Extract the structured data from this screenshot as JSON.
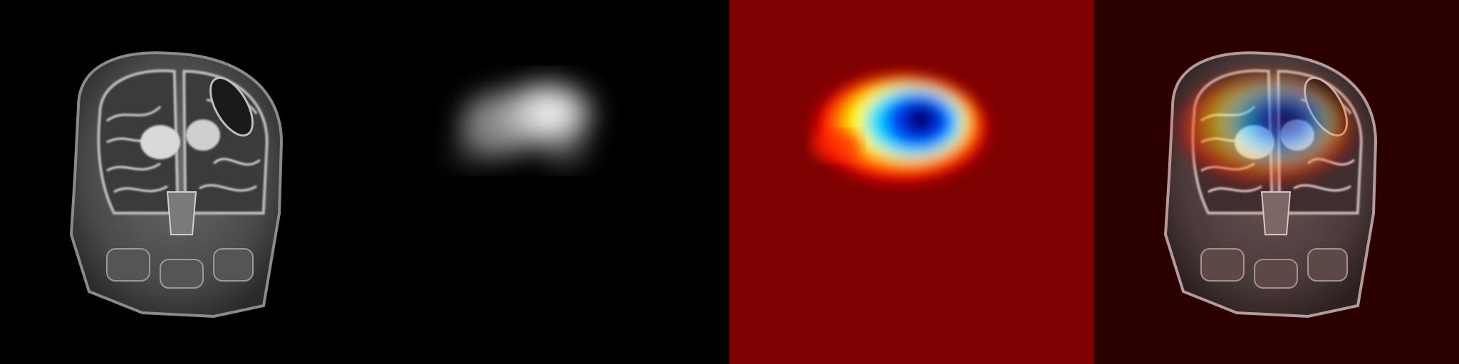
{
  "figure": {
    "panel_count": 4,
    "panels": [
      {
        "id": "mri-t2-coronal",
        "kind": "grayscale-scan"
      },
      {
        "id": "saliency-grayscale",
        "kind": "grayscale-heatmap"
      },
      {
        "id": "saliency-jet",
        "kind": "jet-colormap-heatmap",
        "background_color": "#7f0000"
      },
      {
        "id": "overlay",
        "kind": "scan-with-heatmap-overlay",
        "background_color": "#2a0000"
      }
    ],
    "colors": {
      "black": "#000000",
      "jet_low": "#7f0000",
      "jet_mid_red": "#ff0000",
      "jet_orange": "#ff8000",
      "jet_yellow": "#ffff00",
      "jet_cyan": "#00e0ff",
      "jet_blue": "#0040ff",
      "jet_deep_blue": "#000080",
      "overlay_tint": "#2a0000"
    }
  }
}
